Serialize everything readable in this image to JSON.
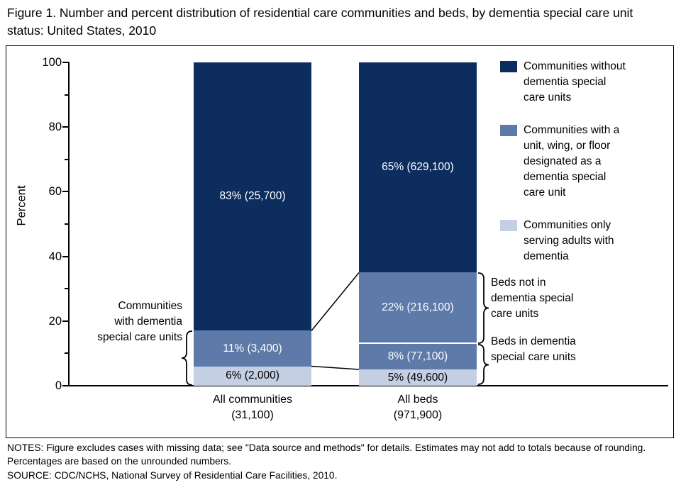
{
  "figure": {
    "title": "Figure 1. Number and percent distribution of residential care communities and beds, by dementia special care unit status: United States, 2010",
    "notes": "NOTES: Figure excludes cases with missing data; see \"Data source and methods\" for details. Estimates may not add to totals because of rounding. Percentages are based on the unrounded numbers.",
    "source": "SOURCE: CDC/NCHS, National Survey of Residential Care Facilities, 2010."
  },
  "chart_data": {
    "type": "bar",
    "subtype": "stacked-percent",
    "title": "Number and percent distribution of residential care communities and beds, by dementia special care unit status: United States, 2010",
    "ylabel": "Percent",
    "ylim": [
      0,
      100
    ],
    "yticks": [
      0,
      20,
      40,
      60,
      80,
      100
    ],
    "yticks_minor": [
      10,
      30,
      50,
      70,
      90
    ],
    "grid": false,
    "legend_position": "upper-right-inside",
    "colors": {
      "dark": "#0d2d5e",
      "medium": "#5d7aa9",
      "light": "#c4cfe4",
      "label_colors": {
        "dark": "#ffffff",
        "medium": "#ffffff",
        "light": "#000000"
      }
    },
    "bars": [
      {
        "xlabel1": "All communities",
        "xlabel2": "(31,100)",
        "total": 31100,
        "segments": [
          {
            "value": 6,
            "count": 2000,
            "label": "6% (2,000)",
            "color": "light"
          },
          {
            "value": 11,
            "count": 3400,
            "label": "11% (3,400)",
            "color": "medium"
          },
          {
            "value": 83,
            "count": 25700,
            "label": "83% (25,700)",
            "color": "dark"
          }
        ]
      },
      {
        "xlabel1": "All beds",
        "xlabel2": "(971,900)",
        "total": 971900,
        "segments": [
          {
            "value": 5,
            "count": 49600,
            "label": "5% (49,600)",
            "color": "light"
          },
          {
            "value": 8,
            "count": 77100,
            "label": "8% (77,100)",
            "color": "medium"
          },
          {
            "value": 22,
            "count": 216100,
            "label": "22% (216,100)",
            "color": "medium"
          },
          {
            "value": 65,
            "count": 629100,
            "label": "65% (629,100)",
            "color": "dark"
          }
        ]
      }
    ],
    "legend": [
      {
        "color": "dark",
        "text": "Communities without dementia special care units"
      },
      {
        "color": "medium",
        "text": "Communities with a unit, wing, or floor designated as a dementia special care unit"
      },
      {
        "color": "light",
        "text": "Communities only serving adults with dementia"
      }
    ],
    "annotations": {
      "left_label": "Communities with dementia special care units",
      "beds_not_in": "Beds not in dementia special care units",
      "beds_in": "Beds in dementia special care units"
    }
  }
}
